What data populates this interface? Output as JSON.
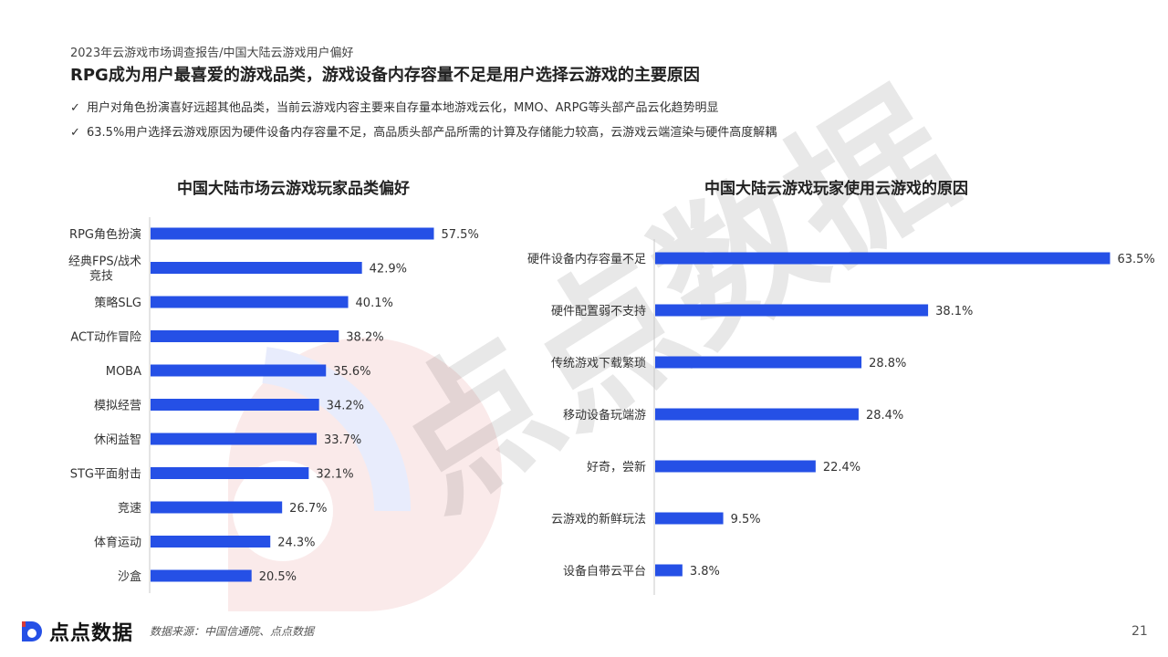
{
  "header": {
    "report_path": "2023年云游戏市场调查报告/中国大陆云游戏用户偏好",
    "headline": "RPG成为用户最喜爱的游戏品类，游戏设备内存容量不足是用户选择云游戏的主要原因"
  },
  "bullets": [
    "用户对角色扮演喜好远超其他品类，当前云游戏内容主要来自存量本地游戏云化，MMO、ARPG等头部产品云化趋势明显",
    "63.5%用户选择云游戏原因为硬件设备内存容量不足，高品质头部产品所需的计算及存储能力较高，云游戏云端渲染与硬件高度解耦"
  ],
  "bullet_mark": "✓",
  "chart_data": [
    {
      "type": "bar",
      "orientation": "horizontal",
      "title": "中国大陆市场云游戏玩家品类偏好",
      "categories": [
        "RPG角色扮演",
        "经典FPS/战术竞技",
        "策略SLG",
        "ACT动作冒险",
        "MOBA",
        "模拟经营",
        "休闲益智",
        "STG平面射击",
        "竞速",
        "体育运动",
        "沙盒"
      ],
      "values": [
        57.5,
        42.9,
        40.1,
        38.2,
        35.6,
        34.2,
        33.7,
        32.1,
        26.7,
        24.3,
        20.5
      ],
      "value_suffix": "%",
      "color": "#2550e6",
      "grid": false
    },
    {
      "type": "bar",
      "orientation": "horizontal",
      "title": "中国大陆云游戏玩家使用云游戏的原因",
      "categories": [
        "硬件设备内存容量不足",
        "硬件配置弱不支持",
        "传统游戏下载繁琐",
        "移动设备玩端游",
        "好奇，尝新",
        "云游戏的新鲜玩法",
        "设备自带云平台"
      ],
      "values": [
        63.5,
        38.1,
        28.8,
        28.4,
        22.4,
        9.5,
        3.8
      ],
      "value_suffix": "%",
      "color": "#2550e6",
      "grid": false
    }
  ],
  "footer": {
    "logo_text": "点点数据",
    "source": "数据来源：中国信通院、点点数据",
    "page_number": "21"
  },
  "watermark": {
    "text": "点点数据"
  }
}
